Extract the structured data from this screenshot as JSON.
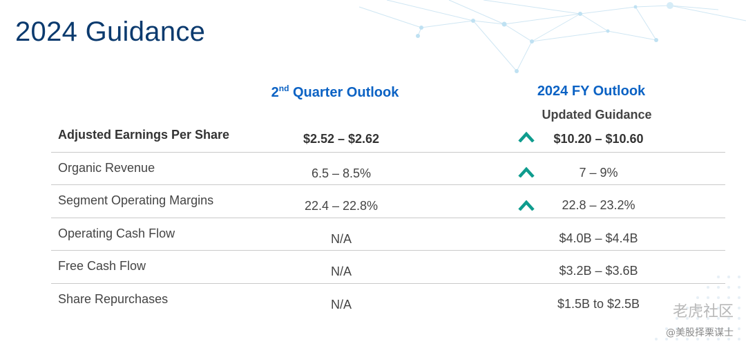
{
  "title": "2024 Guidance",
  "columns": {
    "quarter_sup": "nd",
    "quarter_num": "2",
    "quarter_rest": " Quarter Outlook",
    "fy": "2024 FY Outlook",
    "fy_sub": "Updated Guidance"
  },
  "colors": {
    "title": "#0b3a6e",
    "column_header": "#0b62c4",
    "arrow": "#0f9c8e",
    "text": "#444444"
  },
  "rows": [
    {
      "metric": "Adjusted Earnings Per Share",
      "quarter": "$2.52 – $2.62",
      "fy": "$10.20 – $10.60",
      "raised": true,
      "icon": "chevron-up-icon"
    },
    {
      "metric": "Organic Revenue",
      "quarter": "6.5 – 8.5%",
      "fy": "7 – 9%",
      "raised": true,
      "icon": "chevron-up-icon"
    },
    {
      "metric": "Segment Operating Margins",
      "quarter": "22.4 – 22.8%",
      "fy": "22.8 – 23.2%",
      "raised": true,
      "icon": "chevron-up-icon"
    },
    {
      "metric": "Operating Cash Flow",
      "quarter": "N/A",
      "fy": "$4.0B – $4.4B",
      "raised": false
    },
    {
      "metric": "Free Cash Flow",
      "quarter": "N/A",
      "fy": "$3.2B – $3.6B",
      "raised": false
    },
    {
      "metric": "Share Repurchases",
      "quarter": "N/A",
      "fy": "$1.5B to $2.5B",
      "raised": false
    }
  ],
  "watermark": {
    "line1": "老虎社区",
    "line2": "@美股择栗谋士"
  }
}
